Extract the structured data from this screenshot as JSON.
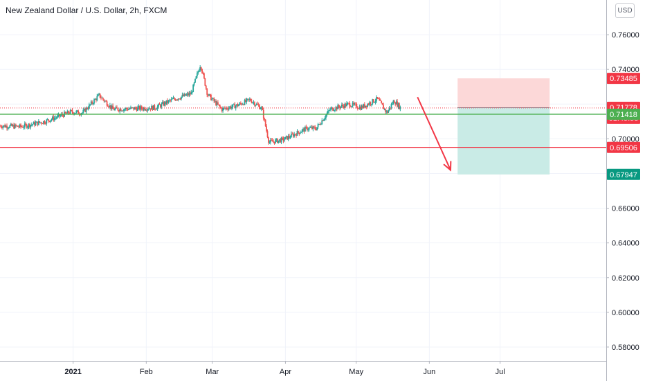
{
  "header": {
    "title": "New Zealand Dollar / U.S. Dollar, 2h, FXCM",
    "currency": "USD"
  },
  "chart_data": {
    "type": "candlestick",
    "title": "New Zealand Dollar / U.S. Dollar, 2h, FXCM",
    "ylim": [
      0.572,
      0.78
    ],
    "y_ticks": [
      "0.76000",
      "0.74000",
      "0.72000",
      "0.70000",
      "0.68000",
      "0.66000",
      "0.64000",
      "0.62000",
      "0.60000",
      "0.58000"
    ],
    "y_tick_values": [
      0.76,
      0.74,
      0.72,
      0.7,
      0.68,
      0.66,
      0.64,
      0.62,
      0.6,
      0.58
    ],
    "x_labels": [
      "2021",
      "Feb",
      "Mar",
      "Apr",
      "May",
      "Jun",
      "Jul"
    ],
    "x_dates": [
      "2021-01-01",
      "2021-02-01",
      "2021-03-01",
      "2021-04-01",
      "2021-05-01",
      "2021-06-01",
      "2021-07-01"
    ],
    "x_start": "2020-12-01",
    "x_end": "2021-08-15",
    "grid": true,
    "price_path": [
      {
        "date": "2020-12-01",
        "value": 0.7075
      },
      {
        "date": "2020-12-10",
        "value": 0.707
      },
      {
        "date": "2020-12-20",
        "value": 0.71
      },
      {
        "date": "2020-12-31",
        "value": 0.7155
      },
      {
        "date": "2021-01-05",
        "value": 0.715
      },
      {
        "date": "2021-01-12",
        "value": 0.725
      },
      {
        "date": "2021-01-18",
        "value": 0.717
      },
      {
        "date": "2021-01-28",
        "value": 0.7175
      },
      {
        "date": "2021-02-05",
        "value": 0.718
      },
      {
        "date": "2021-02-12",
        "value": 0.7225
      },
      {
        "date": "2021-02-20",
        "value": 0.726
      },
      {
        "date": "2021-02-24",
        "value": 0.743
      },
      {
        "date": "2021-02-27",
        "value": 0.7255
      },
      {
        "date": "2021-03-05",
        "value": 0.717
      },
      {
        "date": "2021-03-12",
        "value": 0.7195
      },
      {
        "date": "2021-03-17",
        "value": 0.7225
      },
      {
        "date": "2021-03-22",
        "value": 0.7175
      },
      {
        "date": "2021-03-25",
        "value": 0.698
      },
      {
        "date": "2021-03-31",
        "value": 0.6995
      },
      {
        "date": "2021-04-10",
        "value": 0.706
      },
      {
        "date": "2021-04-14",
        "value": 0.706
      },
      {
        "date": "2021-04-20",
        "value": 0.717
      },
      {
        "date": "2021-04-28",
        "value": 0.72
      },
      {
        "date": "2021-05-03",
        "value": 0.718
      },
      {
        "date": "2021-05-10",
        "value": 0.723
      },
      {
        "date": "2021-05-14",
        "value": 0.715
      },
      {
        "date": "2021-05-17",
        "value": 0.722
      },
      {
        "date": "2021-05-20",
        "value": 0.7175
      }
    ],
    "horizontal_lines": [
      {
        "value": 0.71418,
        "color": "#4caf50"
      },
      {
        "value": 0.69506,
        "color": "#f23645"
      }
    ],
    "trade_box": {
      "start": "2021-06-13",
      "end": "2021-07-22",
      "stop": 0.73485,
      "entry": 0.7179,
      "target": 0.67947
    },
    "arrow": {
      "from": {
        "date": "2021-05-27",
        "value": 0.724
      },
      "to": {
        "date": "2021-06-10",
        "value": 0.682
      },
      "color": "#f23645"
    },
    "price_labels": [
      {
        "value": 0.73485,
        "text": "0.73485",
        "bg": "#f23645"
      },
      {
        "value": 0.7179,
        "text": "0.71790",
        "bg": "#5d606b"
      },
      {
        "value": 0.71778,
        "text": "0.71778",
        "text2": "01:45:53",
        "bg": "#f23645"
      },
      {
        "value": 0.71418,
        "text": "0.71418",
        "bg": "#4caf50"
      },
      {
        "value": 0.69506,
        "text": "0.69506",
        "bg": "#f23645"
      },
      {
        "value": 0.67947,
        "text": "0.67947",
        "bg": "#089981"
      }
    ],
    "colors": {
      "up": "#26a69a",
      "down": "#ef5350",
      "stop_zone": "#fcd8d8",
      "target_zone": "#c9ebe6"
    }
  }
}
